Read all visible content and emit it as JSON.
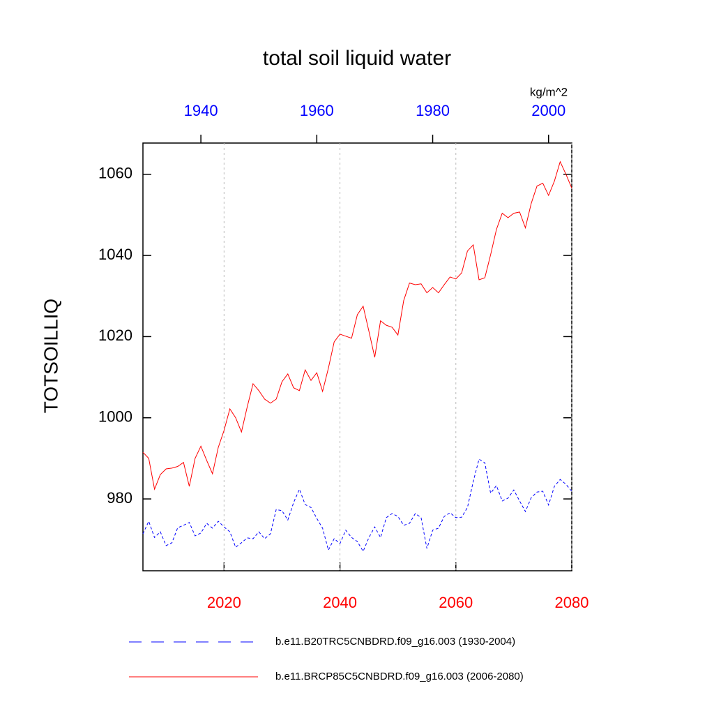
{
  "chart_data": {
    "type": "line",
    "title": "total soil liquid water",
    "ylabel": "TOTSOILLIQ",
    "units": "kg/m^2",
    "x": [
      2006,
      2007,
      2008,
      2009,
      2010,
      2011,
      2012,
      2013,
      2014,
      2015,
      2016,
      2017,
      2018,
      2019,
      2020,
      2021,
      2022,
      2023,
      2024,
      2025,
      2026,
      2027,
      2028,
      2029,
      2030,
      2031,
      2032,
      2033,
      2034,
      2035,
      2036,
      2037,
      2038,
      2039,
      2040,
      2041,
      2042,
      2043,
      2044,
      2045,
      2046,
      2047,
      2048,
      2049,
      2050,
      2051,
      2052,
      2053,
      2054,
      2055,
      2056,
      2057,
      2058,
      2059,
      2060,
      2061,
      2062,
      2063,
      2064,
      2065,
      2066,
      2067,
      2068,
      2069,
      2070,
      2071,
      2072,
      2073,
      2074,
      2075,
      2076,
      2077,
      2078,
      2079,
      2080
    ],
    "x2": [
      1930,
      1931,
      1932,
      1933,
      1934,
      1935,
      1936,
      1937,
      1938,
      1939,
      1940,
      1941,
      1942,
      1943,
      1944,
      1945,
      1946,
      1947,
      1948,
      1949,
      1950,
      1951,
      1952,
      1953,
      1954,
      1955,
      1956,
      1957,
      1958,
      1959,
      1960,
      1961,
      1962,
      1963,
      1964,
      1965,
      1966,
      1967,
      1968,
      1969,
      1970,
      1971,
      1972,
      1973,
      1974,
      1975,
      1976,
      1977,
      1978,
      1979,
      1980,
      1981,
      1982,
      1983,
      1984,
      1985,
      1986,
      1987,
      1988,
      1989,
      1990,
      1991,
      1992,
      1993,
      1994,
      1995,
      1996,
      1997,
      1998,
      1999,
      2000,
      2001,
      2002,
      2003,
      2004
    ],
    "xlim": [
      2006,
      2080
    ],
    "xticks": [
      2020,
      2040,
      2060,
      2080
    ],
    "xtick_color": "#ff0000",
    "x2lim": [
      1930,
      2004
    ],
    "x2ticks": [
      1940,
      1960,
      1980,
      2000
    ],
    "x2tick_color": "#0000ff",
    "ylim": [
      962.3,
      1067.7
    ],
    "yticks": [
      980,
      1000,
      1020,
      1040,
      1060
    ],
    "grid": true,
    "legend": "bottom",
    "series": [
      {
        "name": "b.e11.B20TRC5CNBDRD.f09_g16.003 (1930-2004)",
        "color": "#0000ff",
        "dash": true,
        "xaxis": "x2",
        "values": [
          971.4,
          974.5,
          970.5,
          971.9,
          968.5,
          969.2,
          972.9,
          973.5,
          974.2,
          970.9,
          971.6,
          974,
          972.8,
          974.5,
          973.1,
          971.9,
          968.1,
          969.2,
          970.4,
          970.2,
          971.9,
          970.2,
          971.4,
          977.4,
          977.1,
          974.8,
          979.1,
          982.4,
          978.6,
          977.9,
          975.2,
          972.8,
          967.4,
          970.2,
          969,
          972.3,
          970.5,
          969.5,
          967.1,
          970.5,
          973.1,
          970.5,
          975.4,
          976.4,
          975.7,
          973.5,
          974,
          976.4,
          975.4,
          967.8,
          972.3,
          972.8,
          975.7,
          976.6,
          975.4,
          975.5,
          977.9,
          984.3,
          989.8,
          988.9,
          981.4,
          983.3,
          979.5,
          980.2,
          982.2,
          979.5,
          976.9,
          980.3,
          981.7,
          981.9,
          978.5,
          983.1,
          984.8,
          983.6,
          981.9
        ]
      },
      {
        "name": "b.e11.BRCP85C5CNBDRD.f09_g16.003 (2006-2080)",
        "color": "#ff0000",
        "dash": false,
        "xaxis": "x",
        "values": [
          991.5,
          990,
          982.4,
          986,
          987.4,
          987.6,
          988,
          989,
          983.1,
          990,
          993,
          989.5,
          986.2,
          992.7,
          996.9,
          1002.2,
          1000,
          996.5,
          1002.7,
          1008.4,
          1006.7,
          1004.6,
          1003.6,
          1004.6,
          1008.9,
          1010.8,
          1007.4,
          1006.7,
          1011.8,
          1009.2,
          1011.1,
          1006.5,
          1012.2,
          1018.7,
          1020.6,
          1020.1,
          1019.6,
          1025.4,
          1027.5,
          1021.3,
          1014.9,
          1023.9,
          1022.8,
          1022.3,
          1020.4,
          1028.9,
          1033.2,
          1032.8,
          1033,
          1030.8,
          1032.1,
          1030.8,
          1032.8,
          1034.7,
          1034.2,
          1035.7,
          1041.1,
          1042.6,
          1034,
          1034.5,
          1040.2,
          1046.4,
          1050.4,
          1049.3,
          1050.4,
          1050.7,
          1046.8,
          1052.8,
          1057.1,
          1057.8,
          1054.8,
          1058.3,
          1063.1,
          1060,
          1056.6
        ]
      }
    ]
  }
}
